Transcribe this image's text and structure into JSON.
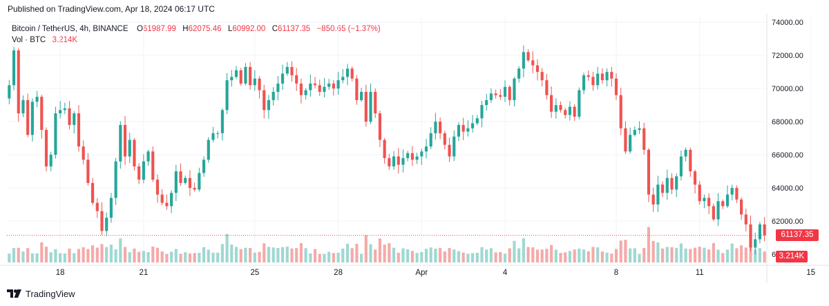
{
  "published": "Published on TradingView.com, Apr 18, 2024 06:17 UTC",
  "legend": {
    "symbol": "Bitcoin / TetherUS, 4h, BINANCE",
    "open_label": "O",
    "open": "61987.99",
    "high_label": "H",
    "high": "62075.46",
    "low_label": "L",
    "low": "60992.00",
    "close_label": "C",
    "close": "61137.35",
    "change": "−850.65 (−1.37%)",
    "vol_label": "Vol · BTC",
    "vol": "3.214K"
  },
  "price_badge": "61137.35",
  "vol_badge": "3.214K",
  "brand": "TradingView",
  "colors": {
    "up": "#26a69a",
    "down": "#ef5350",
    "up_vol": "#9fd8d1",
    "down_vol": "#f5aaa8",
    "grid": "#f0f3fa",
    "last_price_line": "#f23645"
  },
  "chart_data": {
    "type": "candlestick",
    "y_ticks": [
      "74000.00",
      "72000.00",
      "70000.00",
      "68000.00",
      "66000.00",
      "64000.00",
      "62000.00",
      "60000.00"
    ],
    "ylim": [
      59500,
      74300
    ],
    "x_ticks": [
      {
        "label": "18",
        "index": 11
      },
      {
        "label": "21",
        "index": 29
      },
      {
        "label": "25",
        "index": 53
      },
      {
        "label": "28",
        "index": 71
      },
      {
        "label": "Apr",
        "index": 89
      },
      {
        "label": "4",
        "index": 107
      },
      {
        "label": "8",
        "index": 131
      },
      {
        "label": "11",
        "index": 149
      },
      {
        "label": "15",
        "index": 173
      },
      {
        "label": "18",
        "index": 191
      }
    ],
    "last_price": 61137.35,
    "anchors": [
      [
        0,
        70200,
        2
      ],
      [
        1,
        72300,
        3
      ],
      [
        2,
        68500,
        3
      ],
      [
        3,
        69300,
        2
      ],
      [
        4,
        67200,
        3
      ],
      [
        5,
        69200,
        2
      ],
      [
        6,
        69500,
        2
      ],
      [
        7,
        67500,
        4
      ],
      [
        8,
        65300,
        3
      ],
      [
        9,
        66000,
        2
      ],
      [
        10,
        68500,
        3
      ],
      [
        11,
        68700,
        2
      ],
      [
        12,
        68800,
        2
      ],
      [
        13,
        67800,
        3
      ],
      [
        14,
        68500,
        2
      ],
      [
        15,
        66500,
        3
      ],
      [
        16,
        65700,
        3
      ],
      [
        17,
        64300,
        3
      ],
      [
        18,
        63100,
        4
      ],
      [
        19,
        62600,
        3
      ],
      [
        20,
        61400,
        4
      ],
      [
        21,
        62200,
        3
      ],
      [
        22,
        63400,
        4
      ],
      [
        23,
        65600,
        3
      ],
      [
        24,
        67800,
        5
      ],
      [
        25,
        65900,
        3
      ],
      [
        26,
        66900,
        2
      ],
      [
        27,
        65300,
        3
      ],
      [
        28,
        64500,
        2
      ],
      [
        29,
        65600,
        2
      ],
      [
        30,
        66200,
        2
      ],
      [
        31,
        64500,
        3
      ],
      [
        32,
        63600,
        3
      ],
      [
        33,
        63100,
        2
      ],
      [
        34,
        62900,
        2
      ],
      [
        35,
        63700,
        2
      ],
      [
        36,
        65000,
        3
      ],
      [
        37,
        64300,
        2
      ],
      [
        38,
        64600,
        2
      ],
      [
        39,
        64000,
        2
      ],
      [
        40,
        63900,
        2
      ],
      [
        41,
        64900,
        2
      ],
      [
        42,
        65700,
        3
      ],
      [
        43,
        66900,
        3
      ],
      [
        44,
        67300,
        2
      ],
      [
        45,
        67300,
        2
      ],
      [
        46,
        68700,
        4
      ],
      [
        47,
        70500,
        6
      ],
      [
        48,
        70700,
        4
      ],
      [
        49,
        71100,
        3
      ],
      [
        50,
        70300,
        3
      ],
      [
        51,
        71300,
        3
      ],
      [
        52,
        70200,
        3
      ],
      [
        53,
        70600,
        2
      ],
      [
        54,
        69900,
        2
      ],
      [
        55,
        68700,
        4
      ],
      [
        56,
        69300,
        3
      ],
      [
        57,
        69800,
        3
      ],
      [
        58,
        70300,
        3
      ],
      [
        59,
        70900,
        3
      ],
      [
        60,
        71300,
        3
      ],
      [
        61,
        70800,
        3
      ],
      [
        62,
        70300,
        3
      ],
      [
        63,
        69600,
        4
      ],
      [
        64,
        69900,
        3
      ],
      [
        65,
        70300,
        2
      ],
      [
        66,
        70200,
        3
      ],
      [
        67,
        69800,
        2
      ],
      [
        68,
        70100,
        2
      ],
      [
        69,
        70300,
        2
      ],
      [
        70,
        70000,
        2
      ],
      [
        71,
        70500,
        2
      ],
      [
        72,
        70700,
        3
      ],
      [
        73,
        71200,
        4
      ],
      [
        74,
        70600,
        3
      ],
      [
        75,
        69300,
        4
      ],
      [
        76,
        69800,
        2
      ],
      [
        77,
        68000,
        6
      ],
      [
        78,
        69800,
        4
      ],
      [
        79,
        68500,
        3
      ],
      [
        80,
        66900,
        5
      ],
      [
        81,
        65800,
        4
      ],
      [
        82,
        65300,
        4
      ],
      [
        83,
        65900,
        3
      ],
      [
        84,
        65400,
        2
      ],
      [
        85,
        65800,
        3
      ],
      [
        86,
        66100,
        3
      ],
      [
        87,
        65700,
        2
      ],
      [
        88,
        65900,
        2
      ],
      [
        89,
        66200,
        2
      ],
      [
        90,
        66500,
        3
      ],
      [
        91,
        67300,
        3
      ],
      [
        92,
        68000,
        3
      ],
      [
        93,
        67300,
        3
      ],
      [
        94,
        66600,
        2
      ],
      [
        95,
        65900,
        3
      ],
      [
        96,
        67100,
        3
      ],
      [
        97,
        67800,
        2
      ],
      [
        98,
        67400,
        2
      ],
      [
        99,
        67600,
        2
      ],
      [
        100,
        67900,
        2
      ],
      [
        101,
        68200,
        2
      ],
      [
        102,
        69000,
        3
      ],
      [
        103,
        69300,
        3
      ],
      [
        104,
        69700,
        3
      ],
      [
        105,
        69600,
        2
      ],
      [
        106,
        69500,
        2
      ],
      [
        107,
        70100,
        2
      ],
      [
        108,
        69300,
        3
      ],
      [
        109,
        70600,
        5
      ],
      [
        110,
        71200,
        3
      ],
      [
        111,
        72200,
        5
      ],
      [
        112,
        71700,
        3
      ],
      [
        113,
        71400,
        3
      ],
      [
        114,
        71000,
        3
      ],
      [
        115,
        70500,
        3
      ],
      [
        116,
        69600,
        3
      ],
      [
        117,
        68600,
        4
      ],
      [
        118,
        69000,
        3
      ],
      [
        119,
        68700,
        2
      ],
      [
        120,
        68400,
        2
      ],
      [
        121,
        68900,
        2
      ],
      [
        122,
        68300,
        3
      ],
      [
        123,
        69900,
        3
      ],
      [
        124,
        70800,
        3
      ],
      [
        125,
        70700,
        2
      ],
      [
        126,
        70200,
        3
      ],
      [
        127,
        70900,
        3
      ],
      [
        128,
        70500,
        2
      ],
      [
        129,
        71000,
        2
      ],
      [
        130,
        70600,
        2
      ],
      [
        131,
        69600,
        3
      ],
      [
        132,
        67600,
        5
      ],
      [
        133,
        66200,
        5
      ],
      [
        134,
        67200,
        3
      ],
      [
        135,
        67500,
        3
      ],
      [
        136,
        67600,
        2
      ],
      [
        137,
        66300,
        3
      ],
      [
        138,
        63600,
        8
      ],
      [
        139,
        63000,
        5
      ],
      [
        140,
        64200,
        4
      ],
      [
        141,
        63700,
        3
      ],
      [
        142,
        64600,
        3
      ],
      [
        143,
        63900,
        3
      ],
      [
        144,
        64700,
        3
      ],
      [
        145,
        65900,
        4
      ],
      [
        146,
        66300,
        3
      ],
      [
        147,
        65000,
        3
      ],
      [
        148,
        64200,
        3
      ],
      [
        149,
        63200,
        3
      ],
      [
        150,
        63400,
        3
      ],
      [
        151,
        62900,
        3
      ],
      [
        152,
        62100,
        4
      ],
      [
        153,
        63200,
        3
      ],
      [
        154,
        62900,
        2
      ],
      [
        155,
        63600,
        3
      ],
      [
        156,
        64000,
        4
      ],
      [
        157,
        63300,
        3
      ],
      [
        158,
        62400,
        4
      ],
      [
        159,
        61800,
        3
      ],
      [
        160,
        60400,
        6
      ],
      [
        161,
        60900,
        3
      ],
      [
        162,
        61800,
        3
      ],
      [
        163,
        61137,
        2
      ]
    ],
    "volume_scale_max": 100,
    "notes": "anchors are approximate closing prices per 4h candle [index, close, volume]; open of each candle equals previous close."
  }
}
